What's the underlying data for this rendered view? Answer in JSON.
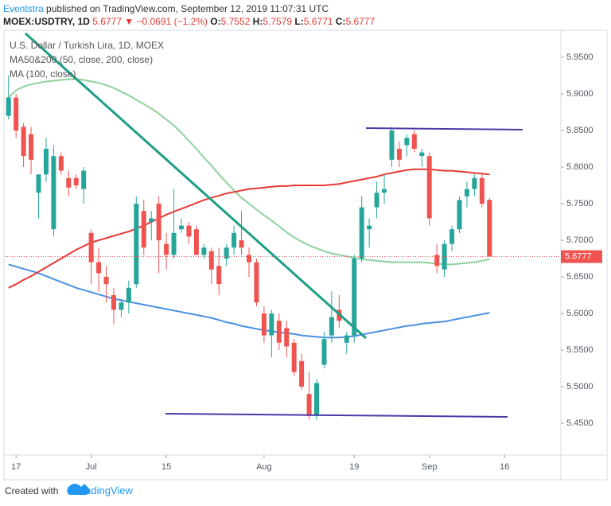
{
  "header": {
    "author": "Eventstra",
    "published": "published on TradingView.com, September 12, 2019 11:07:31 UTC",
    "symbol": "MOEX:USDTRY, 1D",
    "price": "5.6777",
    "arrow": "▼",
    "change": "−0.0691 (−1.2%)",
    "o_label": "O:",
    "o": "5.7552",
    "h_label": "H:",
    "h": "5.7579",
    "l_label": "L:",
    "l": "5.6771",
    "c_label": "C:",
    "c": "5.6777"
  },
  "chart_data": {
    "type": "candlestick",
    "legend": [
      "U.S. Dollar / Turkish Lira, 1D, MOEX",
      "MA50&200 (50, close, 200, close)",
      "MA (100, close)"
    ],
    "up_color": "#26a69a",
    "down_color": "#ef5350",
    "categories": [
      null,
      "17",
      null,
      null,
      null,
      null,
      null,
      null,
      null,
      null,
      null,
      "Jul",
      null,
      null,
      null,
      null,
      null,
      null,
      null,
      null,
      null,
      "15",
      null,
      null,
      null,
      null,
      null,
      null,
      null,
      null,
      null,
      null,
      null,
      null,
      "Aug",
      null,
      null,
      null,
      null,
      null,
      null,
      null,
      null,
      null,
      null,
      null,
      "19",
      null,
      null,
      null,
      null,
      null,
      null,
      null,
      null,
      null,
      "Sep",
      null,
      null,
      null,
      null,
      null,
      null,
      null,
      null,
      null,
      "16",
      null,
      null,
      null,
      null,
      null,
      null,
      null
    ],
    "open": [
      5.87,
      5.895,
      5.855,
      5.845,
      5.765,
      5.79,
      5.715,
      5.815,
      5.785,
      5.785,
      5.77,
      5.71,
      5.67,
      5.65,
      5.625,
      5.605,
      5.615,
      5.64,
      5.74,
      5.725,
      5.75,
      5.695,
      5.68,
      5.715,
      5.72,
      5.715,
      5.68,
      5.685,
      5.665,
      5.675,
      5.69,
      5.7,
      5.68,
      5.67,
      5.6,
      5.57,
      5.59,
      5.58,
      5.56,
      5.535,
      5.49,
      5.46,
      5.53,
      5.57,
      5.605,
      5.56,
      5.57,
      5.675,
      5.715,
      5.745,
      5.765,
      5.81,
      5.825,
      5.83,
      5.845,
      5.815,
      5.815,
      5.68,
      5.66,
      5.695,
      5.715,
      5.76,
      5.77,
      5.785,
      5.7552,
      null,
      null,
      null,
      null,
      null,
      null,
      null,
      null,
      null
    ],
    "high": [
      5.925,
      5.9,
      5.86,
      5.855,
      5.79,
      5.84,
      5.83,
      5.82,
      5.795,
      5.79,
      5.8,
      5.715,
      5.69,
      5.665,
      5.635,
      5.62,
      5.645,
      5.76,
      5.755,
      5.74,
      5.76,
      5.71,
      5.77,
      5.73,
      5.725,
      5.72,
      5.695,
      5.69,
      5.69,
      5.695,
      5.72,
      5.74,
      5.69,
      5.675,
      5.61,
      5.605,
      5.6,
      5.59,
      5.565,
      5.545,
      5.52,
      5.51,
      5.575,
      5.63,
      5.625,
      5.575,
      5.68,
      5.76,
      5.73,
      5.78,
      5.79,
      5.855,
      5.835,
      5.845,
      5.85,
      5.825,
      5.82,
      5.695,
      5.7,
      5.72,
      5.76,
      5.78,
      5.79,
      5.79,
      5.7579,
      null,
      null,
      null,
      null,
      null,
      null,
      null,
      null,
      null
    ],
    "low": [
      5.865,
      5.84,
      5.8,
      5.79,
      5.73,
      5.78,
      5.705,
      5.79,
      5.76,
      5.77,
      5.75,
      5.64,
      5.63,
      5.615,
      5.585,
      5.595,
      5.6,
      5.635,
      5.68,
      5.7,
      5.655,
      5.66,
      5.675,
      5.71,
      5.695,
      5.68,
      5.675,
      5.64,
      5.625,
      5.665,
      5.68,
      5.68,
      5.65,
      5.61,
      5.56,
      5.54,
      5.55,
      5.54,
      5.515,
      5.495,
      5.455,
      5.455,
      5.525,
      5.56,
      5.58,
      5.545,
      5.56,
      5.67,
      5.69,
      5.73,
      5.75,
      5.8,
      5.8,
      5.815,
      5.82,
      5.8,
      5.72,
      5.655,
      5.65,
      5.685,
      5.71,
      5.745,
      5.76,
      5.745,
      5.6771,
      null,
      null,
      null,
      null,
      null,
      null,
      null,
      null,
      null
    ],
    "close": [
      5.895,
      5.85,
      5.815,
      5.81,
      5.79,
      5.825,
      5.815,
      5.795,
      5.772,
      5.775,
      5.795,
      5.67,
      5.655,
      5.64,
      5.605,
      5.615,
      5.635,
      5.75,
      5.69,
      5.73,
      5.7,
      5.68,
      5.71,
      5.72,
      5.705,
      5.68,
      5.69,
      5.66,
      5.64,
      5.69,
      5.71,
      5.69,
      5.67,
      5.615,
      5.57,
      5.6,
      5.56,
      5.555,
      5.52,
      5.5,
      5.46,
      5.505,
      5.565,
      5.595,
      5.59,
      5.57,
      5.675,
      5.745,
      5.72,
      5.765,
      5.77,
      5.85,
      5.81,
      5.84,
      5.825,
      5.82,
      5.73,
      5.665,
      5.695,
      5.715,
      5.755,
      5.77,
      5.785,
      5.75,
      5.6777,
      null,
      null,
      null,
      null,
      null,
      null,
      null,
      null,
      null
    ],
    "lines": [
      {
        "color": "#8fd19e",
        "values": [
          5.895,
          5.905,
          5.91,
          5.913,
          5.915,
          5.917,
          5.918,
          5.919,
          5.92,
          5.92,
          5.919,
          5.917,
          5.915,
          5.912,
          5.908,
          5.903,
          5.898,
          5.892,
          5.886,
          5.88,
          5.873,
          5.865,
          5.857,
          5.847,
          5.836,
          5.825,
          5.813,
          5.802,
          5.79,
          5.779,
          5.768,
          5.758,
          5.75,
          5.742,
          5.734,
          5.727,
          5.719,
          5.711,
          5.704,
          5.698,
          5.693,
          5.689,
          5.685,
          5.682,
          5.68,
          5.678,
          5.676,
          5.674,
          5.673,
          5.672,
          5.671,
          5.67,
          5.67,
          5.67,
          5.67,
          5.67,
          5.669,
          5.668,
          5.667,
          5.667,
          5.668,
          5.669,
          5.67,
          5.672,
          5.674,
          null,
          null,
          null,
          null,
          null,
          null,
          null,
          null,
          null
        ]
      },
      {
        "color": "#4a90e2",
        "values": [
          5.667,
          5.664,
          5.661,
          5.658,
          5.655,
          5.651,
          5.647,
          5.643,
          5.639,
          5.635,
          5.632,
          5.629,
          5.626,
          5.623,
          5.62,
          5.618,
          5.616,
          5.614,
          5.612,
          5.61,
          5.608,
          5.606,
          5.604,
          5.602,
          5.6,
          5.598,
          5.596,
          5.594,
          5.591,
          5.588,
          5.586,
          5.583,
          5.581,
          5.579,
          5.577,
          5.576,
          5.574,
          5.573,
          5.572,
          5.57,
          5.569,
          5.568,
          5.567,
          5.567,
          5.567,
          5.568,
          5.569,
          5.571,
          5.573,
          5.575,
          5.577,
          5.579,
          5.581,
          5.583,
          5.584,
          5.586,
          5.587,
          5.588,
          5.589,
          5.591,
          5.593,
          5.595,
          5.597,
          5.599,
          5.601,
          null,
          null,
          null,
          null,
          null,
          null,
          null,
          null,
          null
        ]
      },
      {
        "color": "#e53935",
        "values": [
          5.635,
          5.64,
          5.646,
          5.651,
          5.657,
          5.663,
          5.669,
          5.675,
          5.681,
          5.687,
          5.692,
          5.697,
          5.7,
          5.703,
          5.706,
          5.709,
          5.712,
          5.716,
          5.72,
          5.725,
          5.73,
          5.735,
          5.739,
          5.743,
          5.747,
          5.751,
          5.755,
          5.758,
          5.761,
          5.764,
          5.766,
          5.768,
          5.77,
          5.771,
          5.772,
          5.773,
          5.774,
          5.774,
          5.775,
          5.775,
          5.775,
          5.775,
          5.775,
          5.776,
          5.777,
          5.779,
          5.781,
          5.783,
          5.785,
          5.787,
          5.79,
          5.792,
          5.794,
          5.796,
          5.797,
          5.797,
          5.797,
          5.796,
          5.795,
          5.795,
          5.794,
          5.793,
          5.792,
          5.791,
          5.79,
          null,
          null,
          null,
          null,
          null,
          null,
          null,
          null,
          null
        ]
      }
    ],
    "last_price": 5.6777,
    "last_color": "#ef5350",
    "ylim": [
      5.4065,
      5.9848
    ],
    "yticks": [
      {
        "value": 5.45,
        "label": "5.4500"
      },
      {
        "value": 5.5,
        "label": "5.5000"
      },
      {
        "value": 5.55,
        "label": "5.5500"
      },
      {
        "value": 5.6,
        "label": "5.6000"
      },
      {
        "value": 5.65,
        "label": "5.6500"
      },
      {
        "value": 5.7,
        "label": "5.7000"
      },
      {
        "value": 5.75,
        "label": "5.7500"
      },
      {
        "value": 5.8,
        "label": "5.8000"
      },
      {
        "value": 5.85,
        "label": "5.8500"
      },
      {
        "value": 5.9,
        "label": "5.9000"
      },
      {
        "value": 5.95,
        "label": "5.9500"
      }
    ]
  },
  "footer": {
    "created": "Created with",
    "brand": "TradingView"
  }
}
